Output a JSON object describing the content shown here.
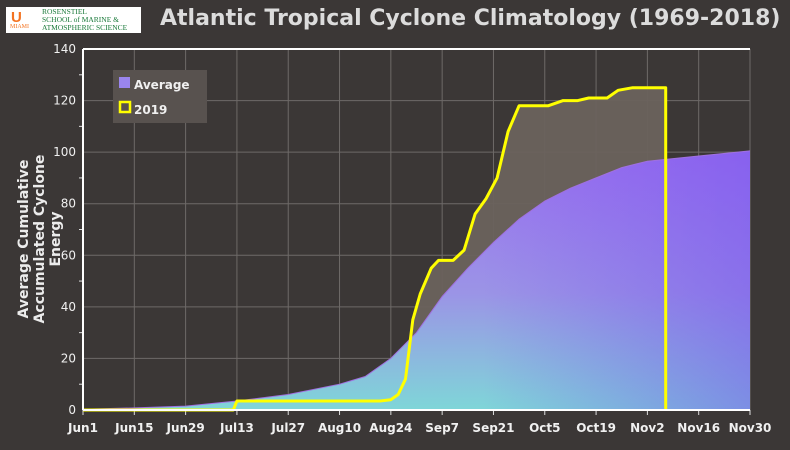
{
  "logo": {
    "text_lines": [
      "ROSENSTIEL",
      "SCHOOL of MARINE &",
      "ATMOSPHERIC SCIENCE"
    ],
    "sub": "MIAMI"
  },
  "chart_data": {
    "type": "area",
    "title": "Atlantic Tropical Cyclone Climatology (1969-2018)",
    "ylabel_lines": [
      "Average Cumulative",
      "Accumulated Cyclone Energy"
    ],
    "xlabel": "",
    "x_unit": "days since Jun 1",
    "xlim": [
      0,
      182
    ],
    "ylim": [
      0,
      140
    ],
    "yticks": [
      0,
      20,
      40,
      60,
      80,
      100,
      120,
      140
    ],
    "xticks": [
      {
        "d": 0,
        "label": "Jun1"
      },
      {
        "d": 14,
        "label": "Jun15"
      },
      {
        "d": 28,
        "label": "Jun29"
      },
      {
        "d": 42,
        "label": "Jul13"
      },
      {
        "d": 56,
        "label": "Jul27"
      },
      {
        "d": 70,
        "label": "Aug10"
      },
      {
        "d": 84,
        "label": "Aug24"
      },
      {
        "d": 98,
        "label": "Sep7"
      },
      {
        "d": 112,
        "label": "Sep21"
      },
      {
        "d": 126,
        "label": "Oct5"
      },
      {
        "d": 140,
        "label": "Oct19"
      },
      {
        "d": 154,
        "label": "Nov2"
      },
      {
        "d": 168,
        "label": "Nov16"
      },
      {
        "d": 182,
        "label": "Nov30"
      }
    ],
    "grid": true,
    "legend_position": "top-left",
    "series": [
      {
        "name": "Average",
        "color": "#8b6ff0",
        "points": [
          [
            0,
            0.3
          ],
          [
            14,
            0.8
          ],
          [
            28,
            1.5
          ],
          [
            42,
            3.5
          ],
          [
            56,
            6
          ],
          [
            70,
            10
          ],
          [
            77,
            13
          ],
          [
            84,
            20
          ],
          [
            91,
            30
          ],
          [
            98,
            44
          ],
          [
            105,
            55
          ],
          [
            112,
            65
          ],
          [
            119,
            74
          ],
          [
            126,
            81
          ],
          [
            133,
            86
          ],
          [
            140,
            90
          ],
          [
            147,
            94
          ],
          [
            154,
            96.5
          ],
          [
            168,
            98.5
          ],
          [
            182,
            100.5
          ]
        ]
      },
      {
        "name": "2019",
        "color": "#ffff00",
        "points": [
          [
            0,
            0
          ],
          [
            41,
            0
          ],
          [
            42,
            3.5
          ],
          [
            81,
            3.5
          ],
          [
            84,
            4
          ],
          [
            86,
            6
          ],
          [
            88,
            12
          ],
          [
            90,
            35
          ],
          [
            92,
            45
          ],
          [
            95,
            55
          ],
          [
            97,
            58
          ],
          [
            101,
            58
          ],
          [
            104,
            62
          ],
          [
            107,
            76
          ],
          [
            110,
            82
          ],
          [
            113,
            90
          ],
          [
            116,
            108
          ],
          [
            119,
            118
          ],
          [
            127,
            118
          ],
          [
            131,
            120
          ],
          [
            135,
            120
          ],
          [
            138,
            121
          ],
          [
            143,
            121
          ],
          [
            146,
            124
          ],
          [
            150,
            125
          ],
          [
            159,
            125
          ],
          [
            159,
            0
          ]
        ]
      }
    ]
  }
}
